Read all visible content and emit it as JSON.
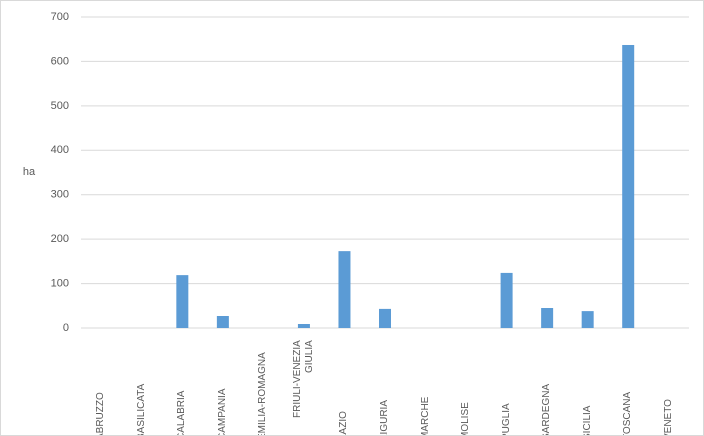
{
  "chart_data": {
    "type": "bar",
    "y_label": "ha",
    "categories": [
      "ABRUZZO",
      "BASILICATA",
      "CALABRIA",
      "CAMPANIA",
      "EMILIA-ROMAGNA",
      "FRIULI-VENEZIA GIULIA",
      "LAZIO",
      "LIGURIA",
      "MARCHE",
      "MOLISE",
      "PUGLIA",
      "SARDEGNA",
      "SICILIA",
      "TOSCANA",
      "VENETO"
    ],
    "values": [
      0,
      0,
      119,
      27,
      0,
      9,
      173,
      43,
      0,
      0,
      124,
      45,
      38,
      637,
      0
    ],
    "color": "#5b9bd5",
    "ylim": [
      0,
      700
    ],
    "yticks": [
      0,
      100,
      200,
      300,
      400,
      500,
      600,
      700
    ],
    "grid": true
  }
}
